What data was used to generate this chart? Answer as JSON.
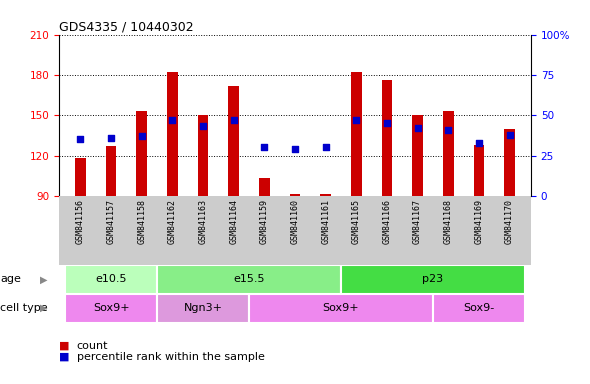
{
  "title": "GDS4335 / 10440302",
  "samples": [
    "GSM841156",
    "GSM841157",
    "GSM841158",
    "GSM841162",
    "GSM841163",
    "GSM841164",
    "GSM841159",
    "GSM841160",
    "GSM841161",
    "GSM841165",
    "GSM841166",
    "GSM841167",
    "GSM841168",
    "GSM841169",
    "GSM841170"
  ],
  "counts": [
    118,
    127,
    153,
    182,
    150,
    172,
    103,
    91,
    91,
    182,
    176,
    150,
    153,
    128,
    140
  ],
  "percentile_ranks": [
    35,
    36,
    37,
    47,
    43,
    47,
    30,
    29,
    30,
    47,
    45,
    42,
    41,
    33,
    38
  ],
  "ymin": 90,
  "ymax": 210,
  "yticks": [
    90,
    120,
    150,
    180,
    210
  ],
  "right_yticks": [
    0,
    25,
    50,
    75,
    100
  ],
  "right_ytick_labels": [
    "0",
    "25",
    "50",
    "75",
    "100%"
  ],
  "bar_color": "#cc0000",
  "dot_color": "#0000cc",
  "age_groups": [
    {
      "label": "e10.5",
      "start": 0,
      "end": 3,
      "color": "#bbffbb"
    },
    {
      "label": "e15.5",
      "start": 3,
      "end": 9,
      "color": "#88ee88"
    },
    {
      "label": "p23",
      "start": 9,
      "end": 15,
      "color": "#44dd44"
    }
  ],
  "cell_groups": [
    {
      "label": "Sox9+",
      "start": 0,
      "end": 3,
      "color": "#ee88ee"
    },
    {
      "label": "Ngn3+",
      "start": 3,
      "end": 6,
      "color": "#dd99dd"
    },
    {
      "label": "Sox9+",
      "start": 6,
      "end": 12,
      "color": "#ee88ee"
    },
    {
      "label": "Sox9-",
      "start": 12,
      "end": 15,
      "color": "#ee88ee"
    }
  ],
  "bar_width": 0.35,
  "dot_size": 20,
  "plot_bg": "#ffffff",
  "tick_area_bg": "#cccccc",
  "grid_color": "#000000",
  "title_fontsize": 9,
  "tick_fontsize": 7.5,
  "sample_fontsize": 6,
  "row_label_fontsize": 8,
  "row_text_fontsize": 8,
  "legend_fontsize": 8
}
